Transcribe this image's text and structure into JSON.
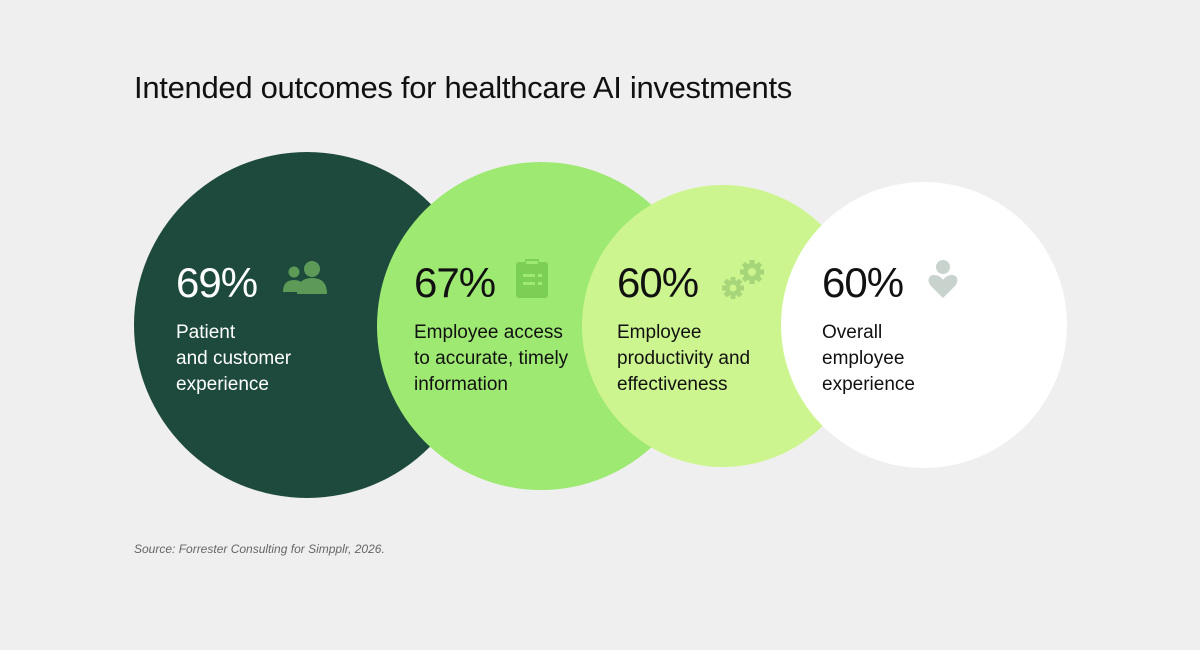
{
  "title": "Intended outcomes for healthcare AI investments",
  "source": "Source: Forrester Consulting for Simpplr, 2026.",
  "colors": {
    "background": "#efefef",
    "circle_1": "#1d4a3c",
    "circle_2": "#9ee972",
    "circle_3": "#cdf58f",
    "circle_4": "#ffffff",
    "icon_1": "#5d9a57",
    "icon_2": "#7bcf55",
    "icon_3": "#a7d67a",
    "icon_4": "#c8d3cd"
  },
  "chart_data": {
    "type": "bubble",
    "title": "Intended outcomes for healthcare AI investments",
    "unit": "%",
    "categories": [
      "Patient and customer experience",
      "Employee access to accurate, timely information",
      "Employee productivity and effectiveness",
      "Overall employee experience"
    ],
    "values": [
      69,
      67,
      60,
      60
    ],
    "items": [
      {
        "value_label": "69%",
        "label_lines": [
          "Patient",
          "and customer",
          "experience"
        ],
        "icon": "people-icon"
      },
      {
        "value_label": "67%",
        "label_lines": [
          "Employee access",
          "to accurate, timely",
          "information"
        ],
        "icon": "clipboard-icon"
      },
      {
        "value_label": "60%",
        "label_lines": [
          "Employee",
          "productivity and",
          "effectiveness"
        ],
        "icon": "gears-icon"
      },
      {
        "value_label": "60%",
        "label_lines": [
          "Overall",
          "employee",
          "experience"
        ],
        "icon": "person-heart-icon"
      }
    ]
  }
}
